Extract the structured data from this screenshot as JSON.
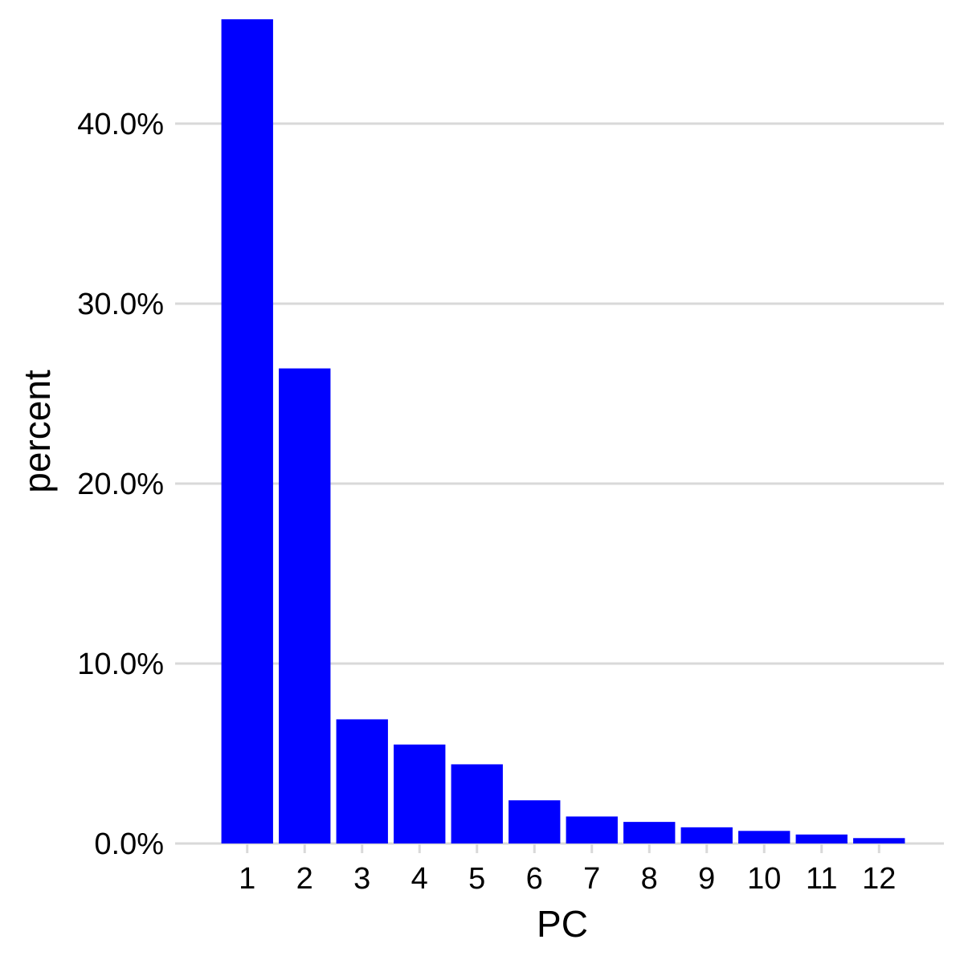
{
  "chart_data": {
    "type": "bar",
    "title": "",
    "xlabel": "PC",
    "ylabel": "percent",
    "categories": [
      "1",
      "2",
      "3",
      "4",
      "5",
      "6",
      "7",
      "8",
      "9",
      "10",
      "11",
      "12"
    ],
    "values": [
      45.8,
      26.4,
      6.9,
      5.5,
      4.4,
      2.4,
      1.5,
      1.2,
      0.9,
      0.7,
      0.5,
      0.3
    ],
    "ylim": [
      0,
      45.8
    ],
    "yticks": [
      0,
      10,
      20,
      30,
      40
    ],
    "ytick_labels": [
      "0.0%",
      "10.0%",
      "20.0%",
      "30.0%",
      "40.0%"
    ],
    "grid": "horizontal",
    "legend": "none",
    "colors": {
      "bar": "#0000ff",
      "grid": "#d9d9d9"
    }
  }
}
